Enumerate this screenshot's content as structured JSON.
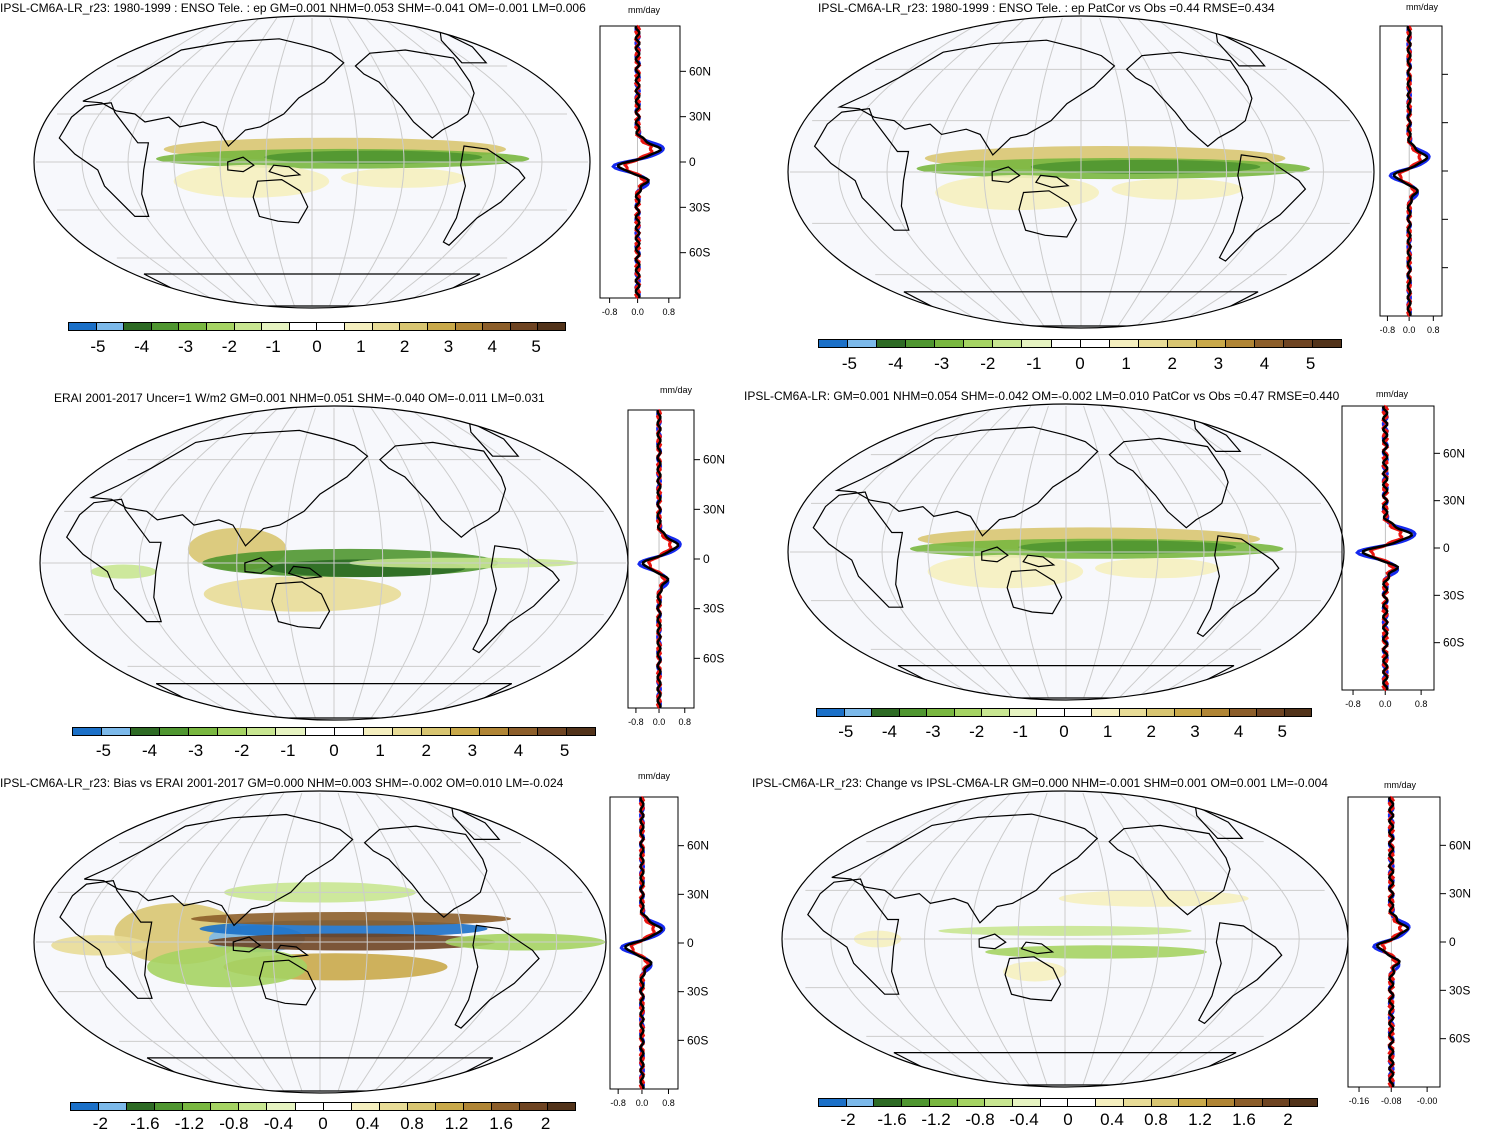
{
  "palette": {
    "ocean": "#f7f8fc",
    "land_outline": "#000000",
    "grid": "#cccccc",
    "model_line": "#e8140f",
    "obs_line": "#1529ee",
    "mean_line": "#000000",
    "colorbar": [
      "#1b70c8",
      "#7cb9ea",
      "#2e6b25",
      "#4f9630",
      "#79b740",
      "#a5d363",
      "#c8e691",
      "#e6f3c1",
      "#ffffff",
      "#ffffff",
      "#f5efbf",
      "#e8dc97",
      "#d8c571",
      "#c9a94a",
      "#b08535",
      "#8c5e2a",
      "#6e4422",
      "#52331a"
    ]
  },
  "panels": [
    {
      "id": "p1",
      "title": "IPSL-CM6A-LR_r23: 1980-1999 : ENSO Tele. : ep GM=0.001 NHM=0.053 SHM=-0.041 OM=-0.001 LM=0.006",
      "unit": "mm/day",
      "lat_ticks": [
        "60N",
        "30N",
        "0",
        "30S",
        "60S"
      ],
      "x_ticks": [
        "-0.8",
        "0.0",
        "0.8"
      ],
      "colorbar_labels": [
        "-5",
        "-4",
        "-3",
        "-2",
        "-1",
        "0",
        "1",
        "2",
        "3",
        "4",
        "5"
      ],
      "pattern": "tele"
    },
    {
      "id": "p2",
      "title": "IPSL-CM6A-LR_r23: 1980-1999 : ENSO Tele. : ep PatCor vs Obs =0.44 RMSE=0.434",
      "unit": "mm/day",
      "lat_ticks": [
        "",
        "",
        "",
        "",
        ""
      ],
      "x_ticks": [
        "-0.8",
        "0.0",
        "0.8"
      ],
      "colorbar_labels": [
        "-5",
        "-4",
        "-3",
        "-2",
        "-1",
        "0",
        "1",
        "2",
        "3",
        "4",
        "5"
      ],
      "pattern": "tele"
    },
    {
      "id": "p3",
      "title": "ERAI 2001-2017 Uncer=1 W/m2 GM=0.001 NHM=0.051 SHM=-0.040 OM=-0.011 LM=0.031",
      "unit": "mm/day",
      "lat_ticks": [
        "60N",
        "30N",
        "0",
        "30S",
        "60S"
      ],
      "x_ticks": [
        "-0.8",
        "0.0",
        "0.8"
      ],
      "colorbar_labels": [
        "-5",
        "-4",
        "-3",
        "-2",
        "-1",
        "0",
        "1",
        "2",
        "3",
        "4",
        "5"
      ],
      "pattern": "obs"
    },
    {
      "id": "p4",
      "title": "IPSL-CM6A-LR: GM=0.001 NHM=0.054 SHM=-0.042 OM=-0.002 LM=0.010 PatCor vs Obs =0.47 RMSE=0.440",
      "unit": "mm/day",
      "lat_ticks": [
        "60N",
        "30N",
        "0",
        "30S",
        "60S"
      ],
      "x_ticks": [
        "-0.8",
        "0.0",
        "0.8"
      ],
      "colorbar_labels": [
        "-5",
        "-4",
        "-3",
        "-2",
        "-1",
        "0",
        "1",
        "2",
        "3",
        "4",
        "5"
      ],
      "pattern": "tele"
    },
    {
      "id": "p5",
      "title": "IPSL-CM6A-LR_r23: Bias vs ERAI 2001-2017 GM=0.000 NHM=0.003 SHM=-0.002 OM=0.010 LM=-0.024",
      "unit": "mm/day",
      "lat_ticks": [
        "60N",
        "30N",
        "0",
        "30S",
        "60S"
      ],
      "x_ticks": [
        "-0.8",
        "0.0",
        "0.8"
      ],
      "colorbar_labels": [
        "-2",
        "-1.6",
        "-1.2",
        "-0.8",
        "-0.4",
        "0",
        "0.4",
        "0.8",
        "1.2",
        "1.6",
        "2"
      ],
      "pattern": "bias"
    },
    {
      "id": "p6",
      "title": "IPSL-CM6A-LR_r23: Change vs IPSL-CM6A-LR GM=0.000 NHM=-0.001 SHM=0.001 OM=0.001 LM=-0.004",
      "unit": "mm/day",
      "lat_ticks": [
        "60N",
        "30N",
        "0",
        "30S",
        "60S"
      ],
      "x_ticks": [
        "-0.16",
        "-0.08",
        "-0.00"
      ],
      "colorbar_labels": [
        "-2",
        "-1.6",
        "-1.2",
        "-0.8",
        "-0.4",
        "0",
        "0.4",
        "0.8",
        "1.2",
        "1.6",
        "2"
      ],
      "pattern": "change"
    }
  ]
}
